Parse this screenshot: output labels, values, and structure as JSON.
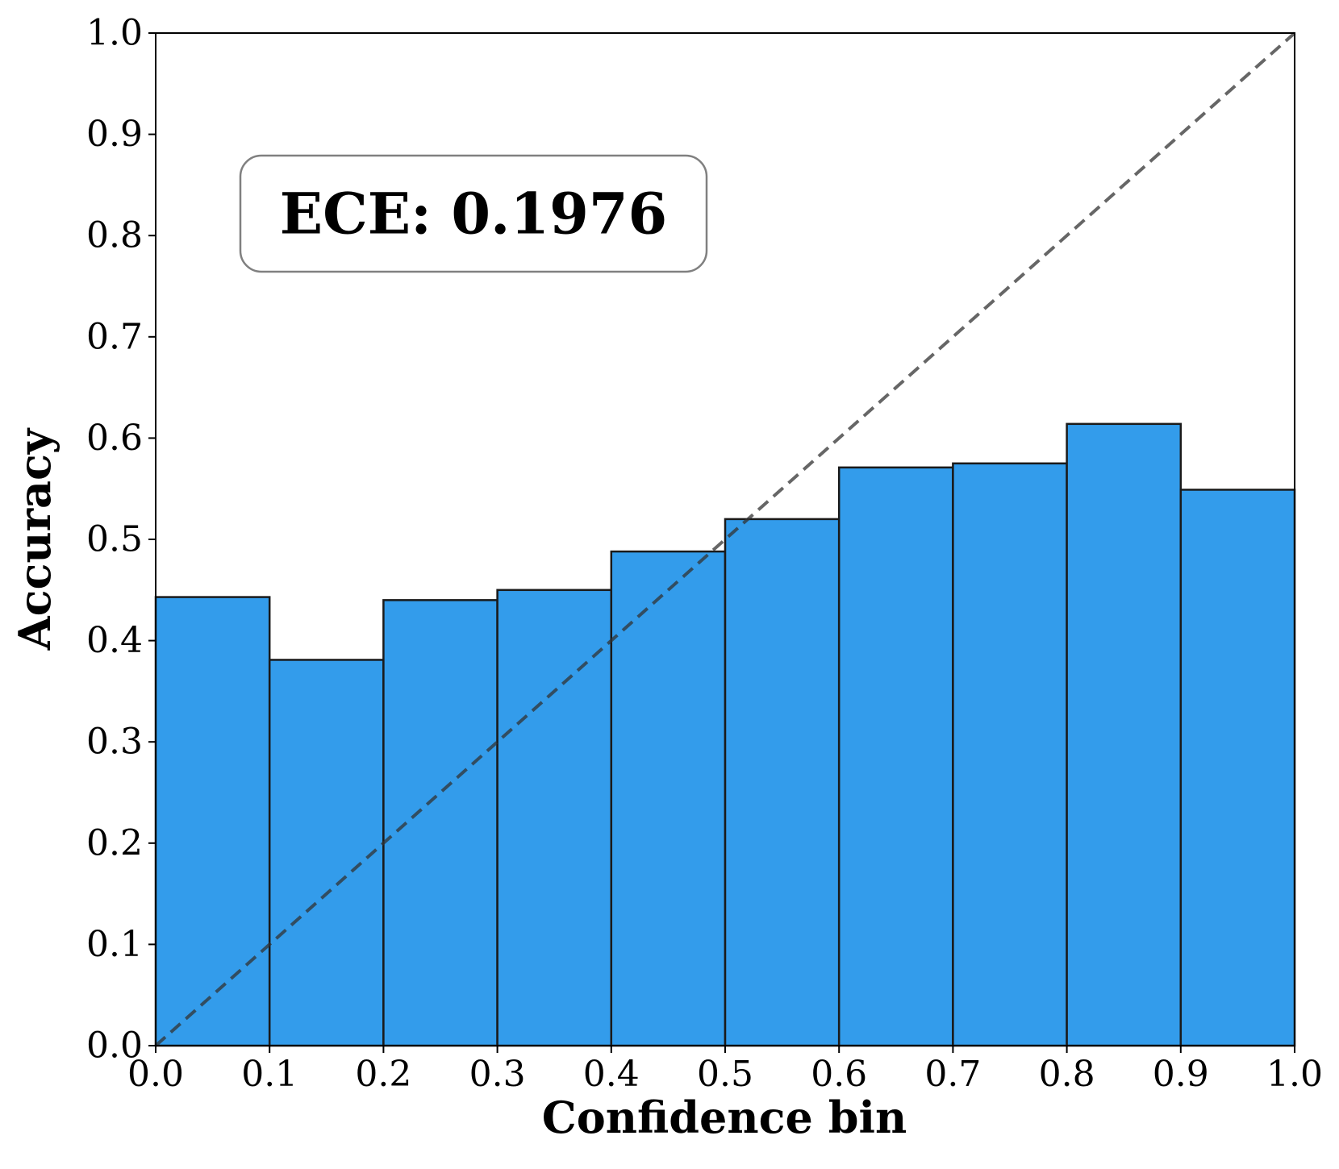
{
  "chart_data": {
    "type": "bar",
    "xlabel": "Confidence bin",
    "ylabel": "Accuracy",
    "xlim": [
      0.0,
      1.0
    ],
    "ylim": [
      0.0,
      1.0
    ],
    "xticks": [
      "0.0",
      "0.1",
      "0.2",
      "0.3",
      "0.4",
      "0.5",
      "0.6",
      "0.7",
      "0.8",
      "0.9",
      "1.0"
    ],
    "yticks": [
      "0.0",
      "0.1",
      "0.2",
      "0.3",
      "0.4",
      "0.5",
      "0.6",
      "0.7",
      "0.8",
      "0.9",
      "1.0"
    ],
    "bins": [
      {
        "start": 0.0,
        "end": 0.1,
        "value": 0.443
      },
      {
        "start": 0.1,
        "end": 0.2,
        "value": 0.381
      },
      {
        "start": 0.2,
        "end": 0.3,
        "value": 0.44
      },
      {
        "start": 0.3,
        "end": 0.4,
        "value": 0.45
      },
      {
        "start": 0.4,
        "end": 0.5,
        "value": 0.488
      },
      {
        "start": 0.5,
        "end": 0.6,
        "value": 0.52
      },
      {
        "start": 0.6,
        "end": 0.7,
        "value": 0.571
      },
      {
        "start": 0.7,
        "end": 0.8,
        "value": 0.575
      },
      {
        "start": 0.8,
        "end": 0.9,
        "value": 0.614
      },
      {
        "start": 0.9,
        "end": 1.0,
        "value": 0.549
      }
    ],
    "reference_line": {
      "style": "dashed",
      "from": [
        0.0,
        0.0
      ],
      "to": [
        1.0,
        1.0
      ]
    },
    "annotation": "ECE: 0.1976",
    "bar_color": "#339CEB",
    "bar_edge_color": "#1a1a1a",
    "reference_line_color": "#333333",
    "grid": false
  }
}
